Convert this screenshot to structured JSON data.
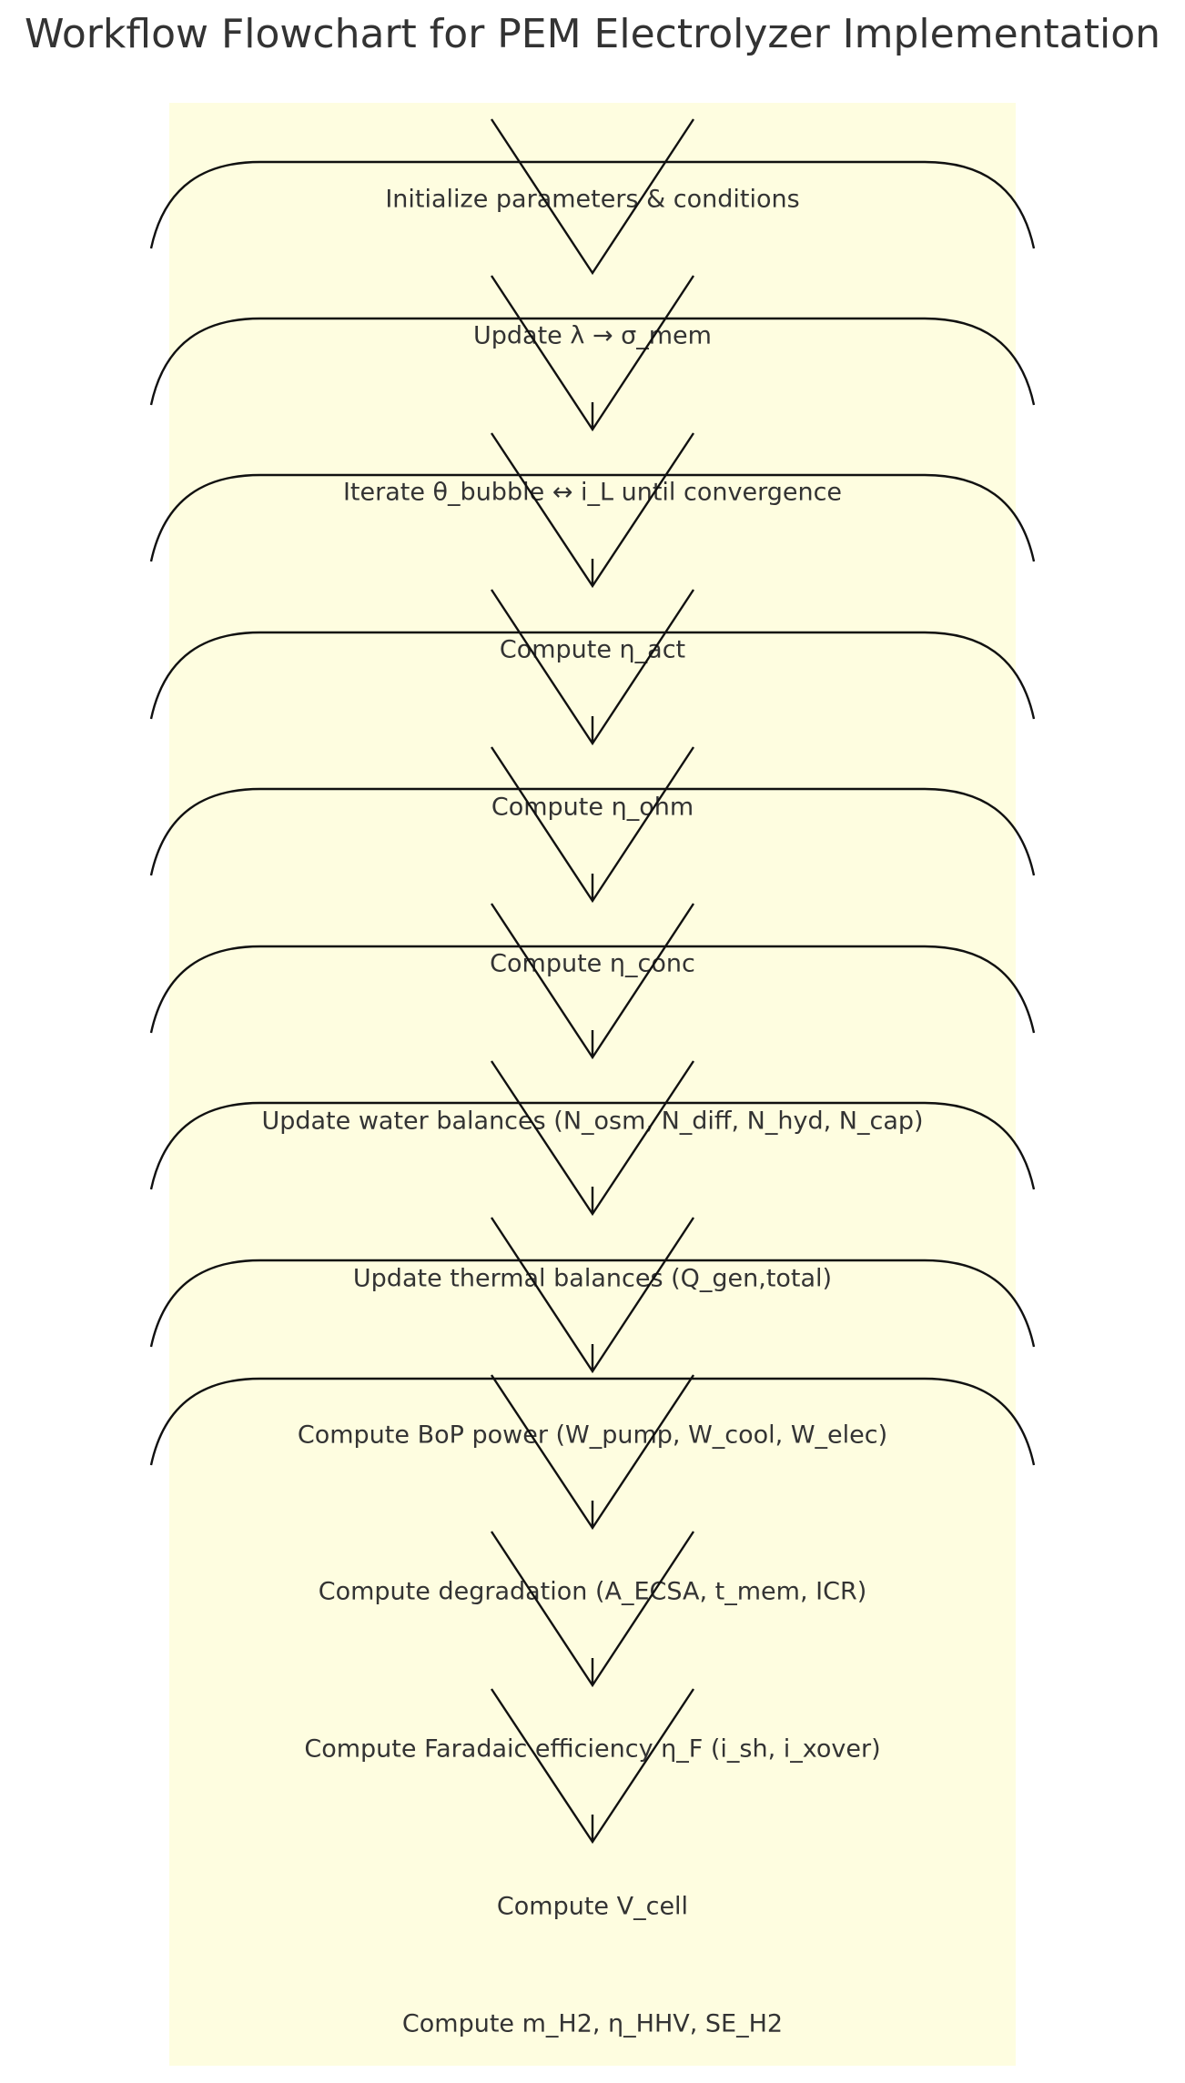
{
  "title": "Workflow Flowchart for PEM Electrolyzer Implementation",
  "colors": {
    "panel_background": "#fefde0",
    "page_background": "#ffffff",
    "text": "#333333",
    "stroke": "#111111"
  },
  "steps": [
    "Initialize parameters & conditions",
    "Update λ → σ_mem",
    "Iterate θ_bubble ↔ i_L until convergence",
    "Compute η_act",
    "Compute η_ohm",
    "Compute η_conc",
    "Update water balances (N_osm, N_diff, N_hyd, N_cap)",
    "Update thermal balances (Q_gen,total)",
    "Compute BoP power (W_pump, W_cool, W_elec)",
    "Compute degradation (A_ECSA, t_mem, ICR)",
    "Compute Faradaic efficiency η_F (i_sh, i_xover)",
    "Compute V_cell",
    "Compute m_H2, η_HHV, SE_H2"
  ]
}
